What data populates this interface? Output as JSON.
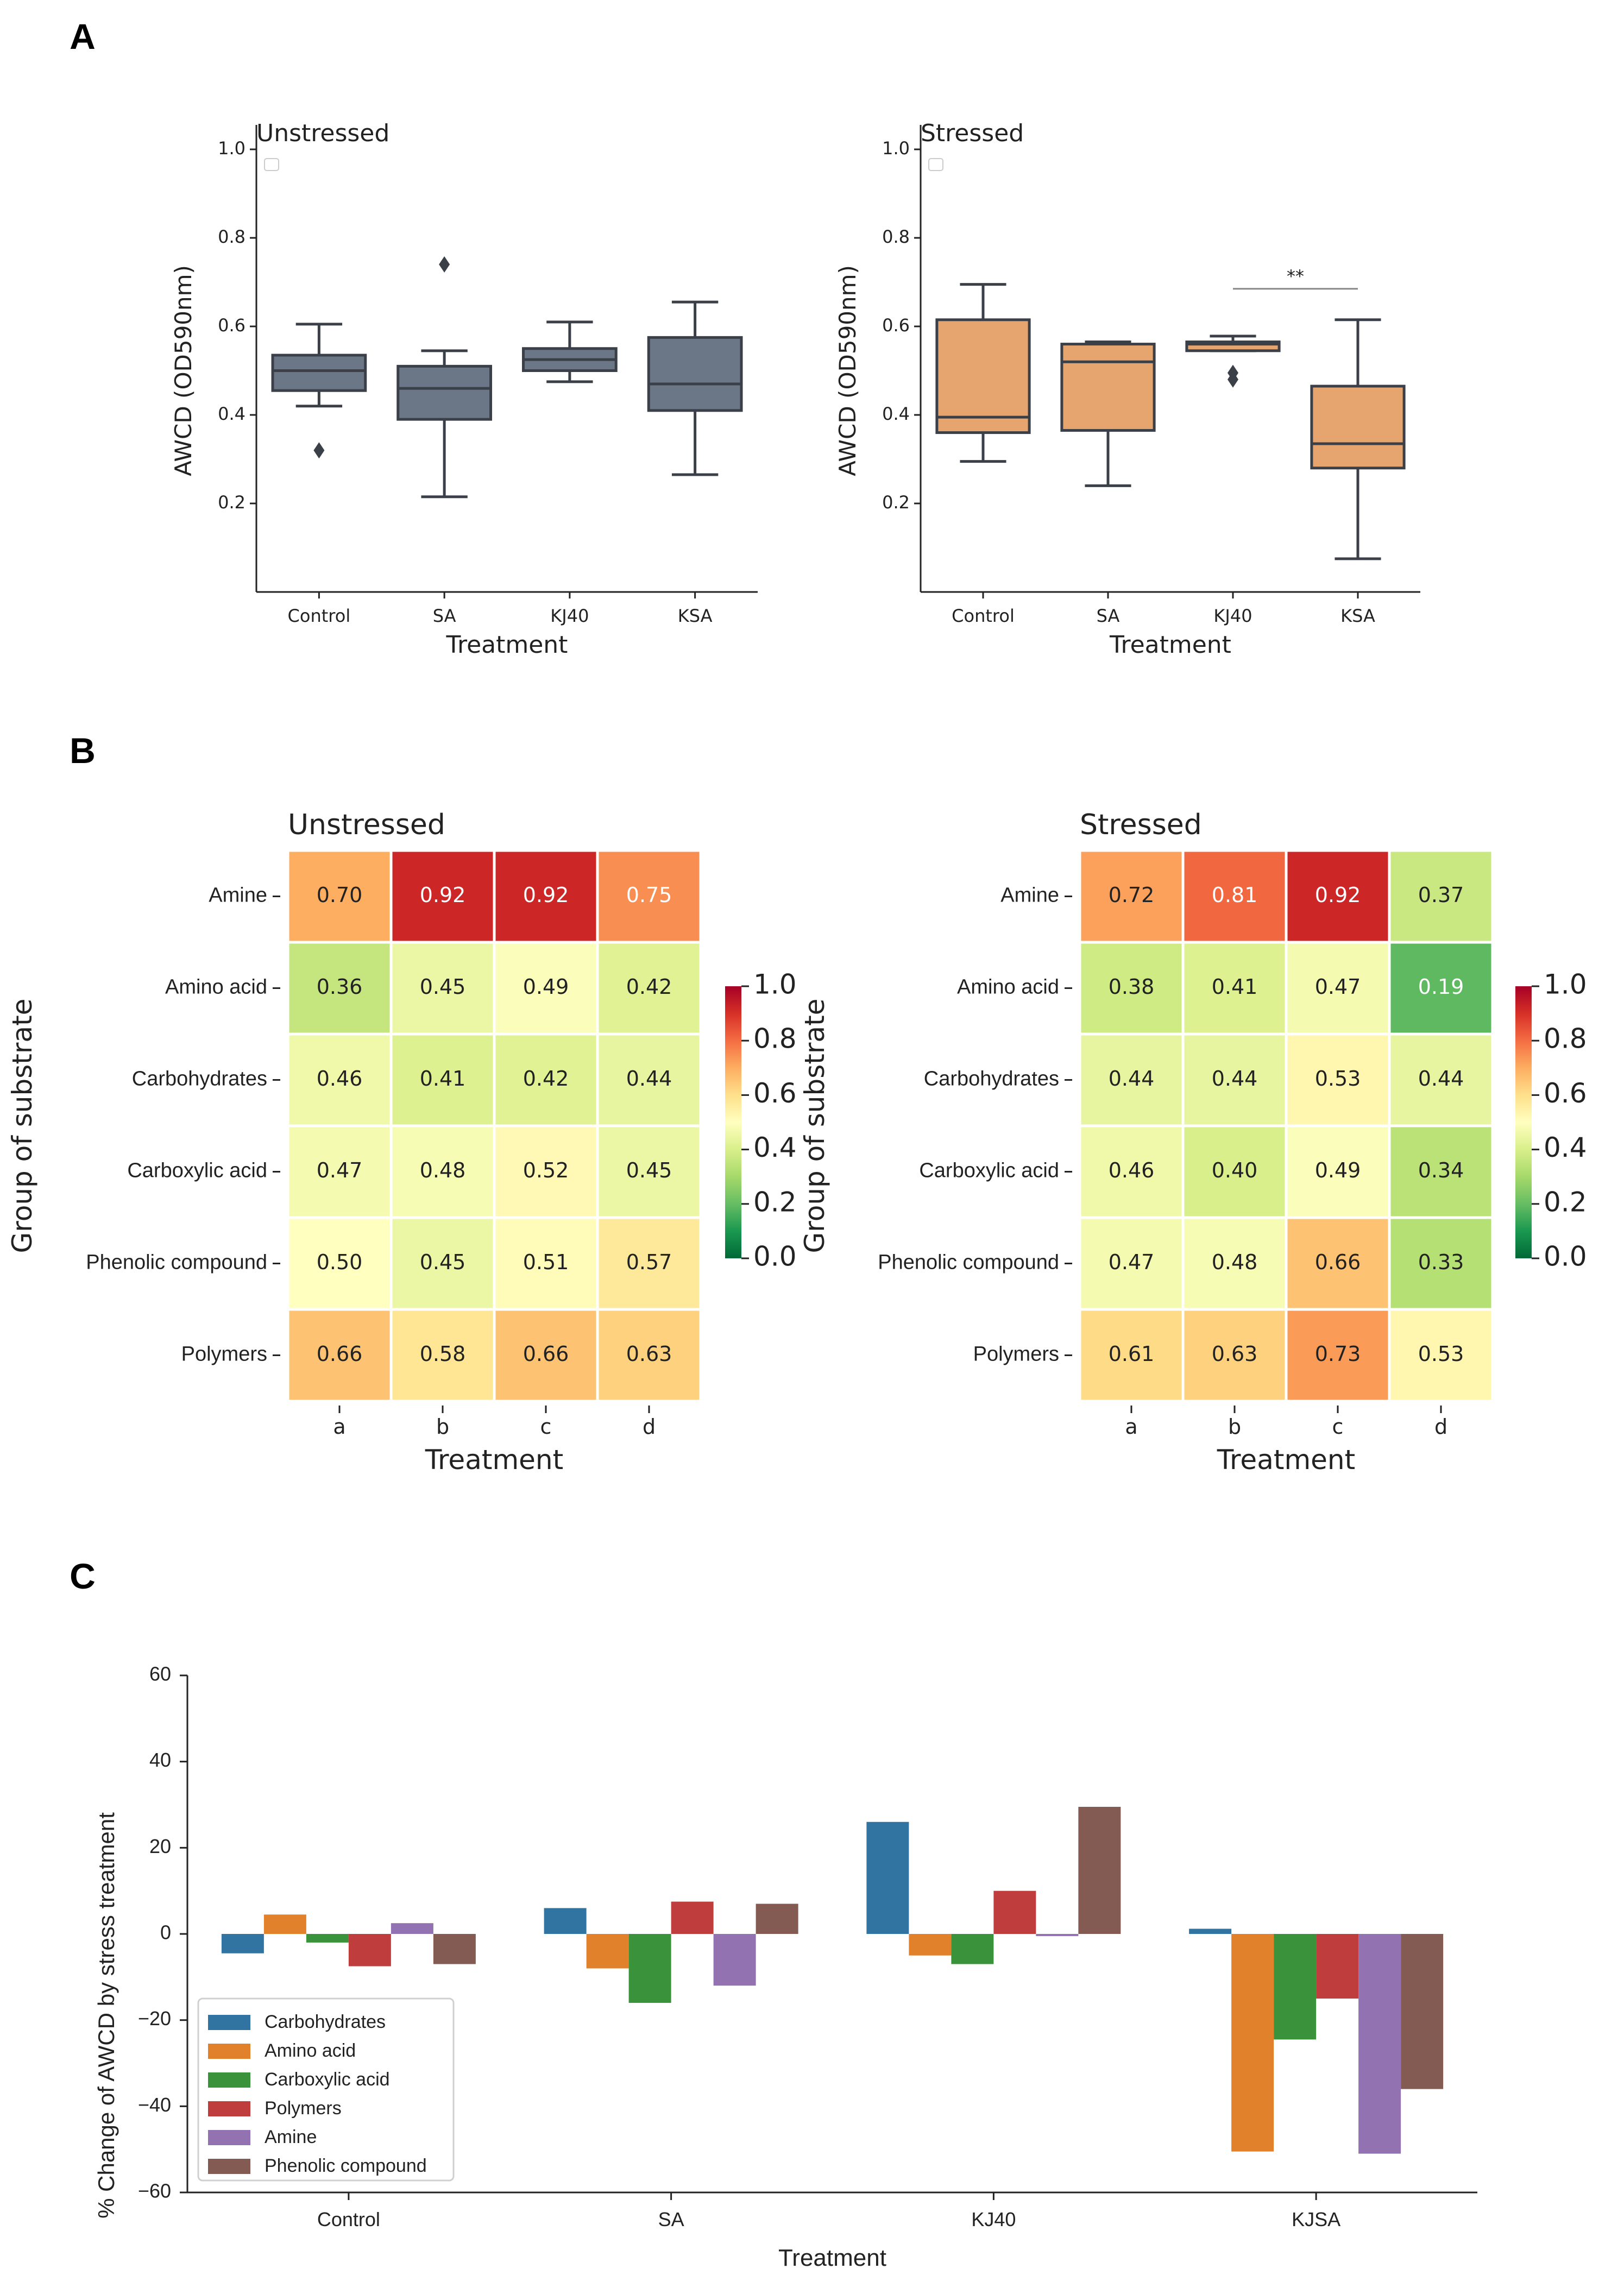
{
  "panel_labels": {
    "a": "A",
    "b": "B",
    "c": "C"
  },
  "colors": {
    "box_unstressed": "#6b7787",
    "box_stressed": "#e6a46e",
    "median": "#3a3f48"
  },
  "chart_data": [
    {
      "type": "box",
      "panel": "A",
      "title": "Unstressed",
      "xlabel": "Treatment",
      "ylabel": "AWCD (OD590nm)",
      "categories": [
        "Control",
        "SA",
        "KJ40",
        "KSA"
      ],
      "ylim": [
        0.0,
        1.0
      ],
      "yticks": [
        "0.2",
        "0.4",
        "0.6",
        "0.8",
        "1.0"
      ],
      "boxes": [
        {
          "q1": 0.455,
          "median": 0.5,
          "q3": 0.535,
          "low": 0.42,
          "high": 0.605,
          "outliers": [
            0.32
          ]
        },
        {
          "q1": 0.39,
          "median": 0.46,
          "q3": 0.51,
          "low": 0.215,
          "high": 0.545,
          "outliers": [
            0.74
          ]
        },
        {
          "q1": 0.5,
          "median": 0.525,
          "q3": 0.55,
          "low": 0.475,
          "high": 0.61,
          "outliers": []
        },
        {
          "q1": 0.41,
          "median": 0.47,
          "q3": 0.575,
          "low": 0.265,
          "high": 0.655,
          "outliers": []
        }
      ]
    },
    {
      "type": "box",
      "panel": "A",
      "title": "Stressed",
      "xlabel": "Treatment",
      "ylabel": "AWCD (OD590nm)",
      "categories": [
        "Control",
        "SA",
        "KJ40",
        "KSA"
      ],
      "ylim": [
        0.0,
        1.0
      ],
      "yticks": [
        "0.2",
        "0.4",
        "0.6",
        "0.8",
        "1.0"
      ],
      "annotation": "**",
      "boxes": [
        {
          "q1": 0.36,
          "median": 0.395,
          "q3": 0.615,
          "low": 0.295,
          "high": 0.695,
          "outliers": []
        },
        {
          "q1": 0.365,
          "median": 0.52,
          "q3": 0.56,
          "low": 0.24,
          "high": 0.565,
          "outliers": []
        },
        {
          "q1": 0.545,
          "median": 0.56,
          "q3": 0.565,
          "low": 0.545,
          "high": 0.578,
          "outliers": [
            0.48,
            0.495
          ]
        },
        {
          "q1": 0.28,
          "median": 0.335,
          "q3": 0.465,
          "low": 0.075,
          "high": 0.615,
          "outliers": []
        }
      ]
    },
    {
      "type": "heatmap",
      "panel": "B",
      "title": "Unstressed",
      "xlabel": "Treatment",
      "ylabel": "Group of substrate",
      "columns": [
        "a",
        "b",
        "c",
        "d"
      ],
      "rows": [
        "Amine",
        "Amino acid",
        "Carbohydrates",
        "Carboxylic acid",
        "Phenolic compound",
        "Polymers"
      ],
      "values": [
        [
          "0.70",
          "0.92",
          "0.92",
          "0.75"
        ],
        [
          "0.36",
          "0.45",
          "0.49",
          "0.42"
        ],
        [
          "0.46",
          "0.41",
          "0.42",
          "0.44"
        ],
        [
          "0.47",
          "0.48",
          "0.52",
          "0.45"
        ],
        [
          "0.50",
          "0.45",
          "0.51",
          "0.57"
        ],
        [
          "0.66",
          "0.58",
          "0.66",
          "0.63"
        ]
      ],
      "colorbar": {
        "min": 0.0,
        "max": 1.0,
        "ticks": [
          "0.0",
          "0.2",
          "0.4",
          "0.6",
          "0.8",
          "1.0"
        ]
      }
    },
    {
      "type": "heatmap",
      "panel": "B",
      "title": "Stressed",
      "xlabel": "Treatment",
      "ylabel": "Group of substrate",
      "columns": [
        "a",
        "b",
        "c",
        "d"
      ],
      "rows": [
        "Amine",
        "Amino acid",
        "Carbohydrates",
        "Carboxylic acid",
        "Phenolic compound",
        "Polymers"
      ],
      "values": [
        [
          "0.72",
          "0.81",
          "0.92",
          "0.37"
        ],
        [
          "0.38",
          "0.41",
          "0.47",
          "0.19"
        ],
        [
          "0.44",
          "0.44",
          "0.53",
          "0.44"
        ],
        [
          "0.46",
          "0.40",
          "0.49",
          "0.34"
        ],
        [
          "0.47",
          "0.48",
          "0.66",
          "0.33"
        ],
        [
          "0.61",
          "0.63",
          "0.73",
          "0.53"
        ]
      ],
      "colorbar": {
        "min": 0.0,
        "max": 1.0,
        "ticks": [
          "0.0",
          "0.2",
          "0.4",
          "0.6",
          "0.8",
          "1.0"
        ]
      }
    },
    {
      "type": "bar",
      "panel": "C",
      "title": "",
      "xlabel": "Treatment",
      "ylabel": "% Change of AWCD by stress treatment",
      "categories": [
        "Control",
        "SA",
        "KJ40",
        "KJSA"
      ],
      "ylim": [
        -60,
        60
      ],
      "yticks": [
        "60",
        "40",
        "20",
        "0",
        "−20",
        "−40",
        "−60"
      ],
      "legend_position": "lower-left",
      "series": [
        {
          "name": "Carbohydrates",
          "color": "#3274a1",
          "values": [
            -4.5,
            6,
            26,
            1.2
          ]
        },
        {
          "name": "Amino acid",
          "color": "#e1812c",
          "values": [
            4.5,
            -8,
            -5,
            -50.5
          ]
        },
        {
          "name": "Carboxylic acid",
          "color": "#3a923a",
          "values": [
            -2,
            -16,
            -7,
            -24.5
          ]
        },
        {
          "name": "Polymers",
          "color": "#c03d3e",
          "values": [
            -7.5,
            7.5,
            10,
            -15
          ]
        },
        {
          "name": "Amine",
          "color": "#9372b2",
          "values": [
            2.5,
            -12,
            -0.5,
            -51
          ]
        },
        {
          "name": "Phenolic compound",
          "color": "#845b53",
          "values": [
            -7,
            7,
            29.5,
            -36
          ]
        }
      ]
    }
  ]
}
